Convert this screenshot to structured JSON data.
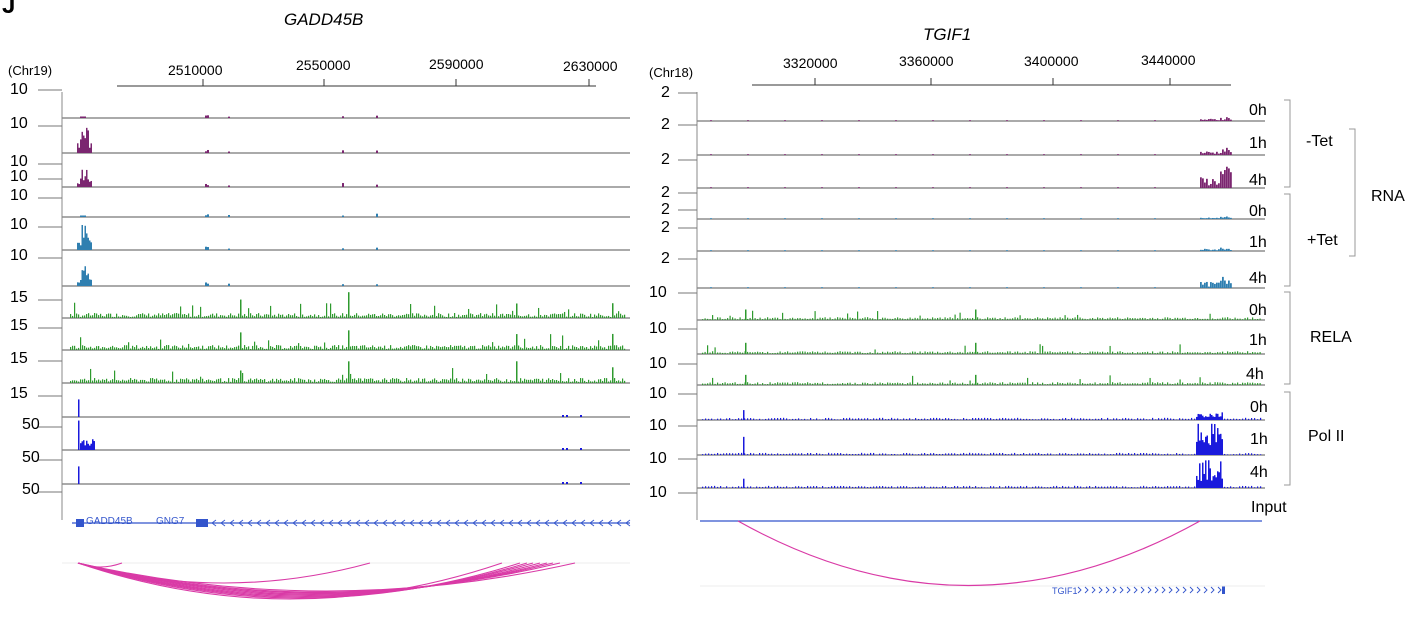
{
  "panel_label": "J",
  "left": {
    "gene_title": "GADD45B",
    "chrom": "(Chr19)",
    "ticks": [
      "2510000",
      "2550000",
      "2590000",
      "2630000"
    ],
    "scales": [
      "10",
      "10",
      "10",
      "10",
      "10",
      "10",
      "10",
      "15",
      "15",
      "15",
      "15",
      "50",
      "50",
      "50"
    ],
    "gene_labels": [
      "GADD45B",
      "GNG7"
    ]
  },
  "right": {
    "gene_title": "TGIF1",
    "chrom": "(Chr18)",
    "ticks": [
      "3320000",
      "3360000",
      "3400000",
      "3440000"
    ],
    "scales": [
      "2",
      "2",
      "2",
      "2",
      "2",
      "2",
      "2",
      "10",
      "10",
      "10",
      "10",
      "10",
      "10",
      "10"
    ],
    "gene_label": "TGIF1"
  },
  "timepoints": [
    "0h",
    "1h",
    "4h",
    "0h",
    "1h",
    "4h",
    "0h",
    "1h",
    "4h",
    "0h",
    "1h",
    "4h"
  ],
  "input_label": "Input",
  "groups": {
    "minus_tet": "-Tet",
    "plus_tet": "+Tet",
    "rna": "RNA",
    "rela": "RELA",
    "pol2": "Pol II"
  },
  "colors": {
    "rna_minus": "#7b2670",
    "rna_plus": "#2f7fb0",
    "rela": "#2e9a2e",
    "pol2": "#1a1adc",
    "arc": "#d93aa6",
    "gene": "#3355cc"
  }
}
